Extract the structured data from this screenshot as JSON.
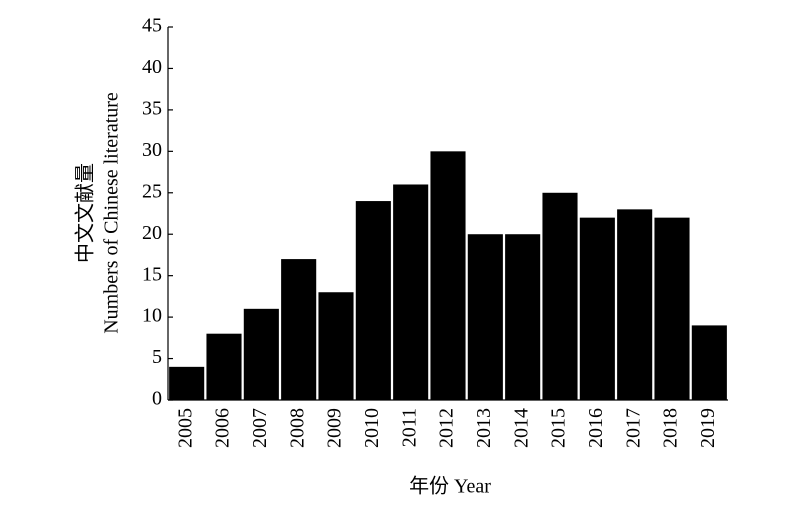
{
  "chart_data": {
    "type": "bar",
    "xlabel": "年份 Year",
    "ylabel": [
      "中文文献量",
      "Numbers of Chinese literature"
    ],
    "categories": [
      "2005",
      "2006",
      "2007",
      "2008",
      "2009",
      "2010",
      "2011",
      "2012",
      "2013",
      "2014",
      "2015",
      "2016",
      "2017",
      "2018",
      "2019"
    ],
    "values": [
      4,
      8,
      11,
      17,
      13,
      24,
      26,
      30,
      20,
      20,
      25,
      22,
      23,
      22,
      9
    ],
    "color": "#000000",
    "ylim": [
      0,
      45
    ],
    "yticks": [
      0,
      5,
      10,
      15,
      20,
      25,
      30,
      35,
      40,
      45
    ],
    "grid": false
  }
}
